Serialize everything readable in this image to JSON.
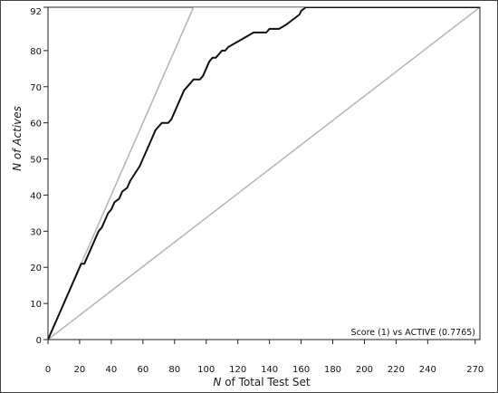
{
  "chart_data": {
    "type": "line",
    "title": "",
    "xlabel_prefix": "N",
    "xlabel_rest": " of Total Test Set",
    "ylabel_prefix": "N",
    "ylabel_rest": " of Actives",
    "annotation": "Score (1) vs ACTIVE (0.7765)",
    "xlim": [
      0,
      273
    ],
    "ylim": [
      0,
      92
    ],
    "x_ticks": [
      0,
      20,
      40,
      60,
      80,
      100,
      120,
      140,
      160,
      180,
      200,
      220,
      240,
      270
    ],
    "y_ticks": [
      0,
      10,
      20,
      30,
      40,
      50,
      60,
      70,
      80,
      92
    ],
    "series": [
      {
        "role": "ideal",
        "color": "#b8b8b8",
        "x": [
          0,
          92,
          273
        ],
        "y": [
          0,
          92,
          92
        ]
      },
      {
        "role": "random",
        "color": "#b8b8b8",
        "x": [
          0,
          273
        ],
        "y": [
          0,
          92
        ]
      },
      {
        "role": "score",
        "color": "#111111",
        "x": [
          0,
          5,
          10,
          15,
          19,
          21,
          23,
          24,
          26,
          28,
          30,
          32,
          34,
          36,
          38,
          40,
          42,
          45,
          47,
          50,
          52,
          55,
          58,
          60,
          62,
          64,
          66,
          68,
          70,
          72,
          74,
          76,
          78,
          80,
          82,
          84,
          86,
          88,
          90,
          92,
          94,
          96,
          98,
          100,
          102,
          104,
          106,
          108,
          110,
          112,
          114,
          118,
          122,
          126,
          130,
          134,
          138,
          140,
          142,
          146,
          150,
          153,
          156,
          159,
          160,
          163,
          170,
          200,
          240,
          273
        ],
        "y": [
          0,
          5,
          10,
          15,
          19,
          21,
          21,
          22,
          24,
          26,
          28,
          30,
          31,
          33,
          35,
          36,
          38,
          39,
          41,
          42,
          44,
          46,
          48,
          50,
          52,
          54,
          56,
          58,
          59,
          60,
          60,
          60,
          61,
          63,
          65,
          67,
          69,
          70,
          71,
          72,
          72,
          72,
          73,
          75,
          77,
          78,
          78,
          79,
          80,
          80,
          81,
          82,
          83,
          84,
          85,
          85,
          85,
          86,
          86,
          86,
          87,
          88,
          89,
          90,
          91,
          92,
          92,
          92,
          92,
          92
        ]
      }
    ]
  }
}
